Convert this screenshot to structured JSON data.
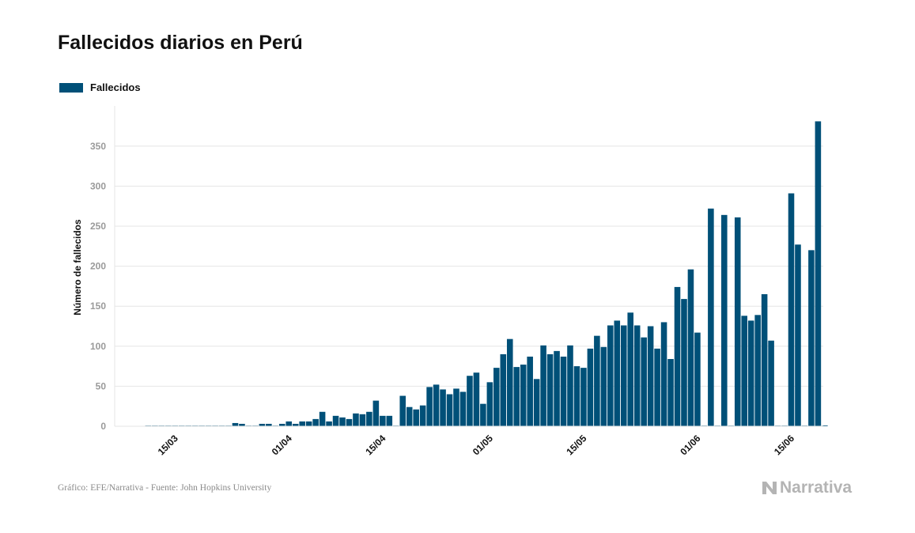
{
  "title": "Fallecidos diarios en Perú",
  "legend": {
    "label": "Fallecidos",
    "color": "#005078"
  },
  "footer": {
    "source": "Gráfico: EFE/Narrativa - Fuente: John Hopkins University"
  },
  "brand": {
    "name": "Narrativa",
    "icon": "narrativa-logo-icon"
  },
  "chart_data": {
    "type": "bar",
    "ylabel": "Número de fallecidos",
    "ylim": [
      0,
      400
    ],
    "yticks": [
      0,
      50,
      100,
      150,
      200,
      250,
      300,
      350
    ],
    "x_start": "2020-03-11",
    "grid": true,
    "legend_position": "top-left",
    "x_ticks": [
      {
        "label": "15/03",
        "date": "2020-03-15"
      },
      {
        "label": "01/04",
        "date": "2020-04-01"
      },
      {
        "label": "15/04",
        "date": "2020-04-15"
      },
      {
        "label": "01/05",
        "date": "2020-05-01"
      },
      {
        "label": "15/05",
        "date": "2020-05-15"
      },
      {
        "label": "01/06",
        "date": "2020-06-01"
      },
      {
        "label": "15/06",
        "date": "2020-06-15"
      }
    ],
    "series": [
      {
        "name": "Fallecidos",
        "color": "#005078",
        "values": [
          0,
          0,
          0,
          0,
          0,
          0,
          0,
          0,
          0,
          0,
          0,
          0,
          0,
          4,
          3,
          0,
          0,
          3,
          3,
          0,
          3,
          6,
          3,
          6,
          6,
          9,
          18,
          6,
          13,
          11,
          9,
          16,
          15,
          18,
          32,
          13,
          13,
          0,
          38,
          24,
          21,
          26,
          49,
          52,
          46,
          40,
          47,
          43,
          63,
          67,
          28,
          55,
          73,
          90,
          109,
          74,
          77,
          87,
          59,
          101,
          90,
          94,
          87,
          101,
          75,
          73,
          97,
          113,
          99,
          126,
          132,
          126,
          142,
          126,
          111,
          125,
          97,
          130,
          84,
          174,
          159,
          196,
          117,
          0,
          272,
          0,
          264,
          0,
          261,
          138,
          132,
          139,
          165,
          107,
          0,
          0,
          291,
          227,
          0,
          220,
          381,
          0
        ]
      }
    ]
  }
}
